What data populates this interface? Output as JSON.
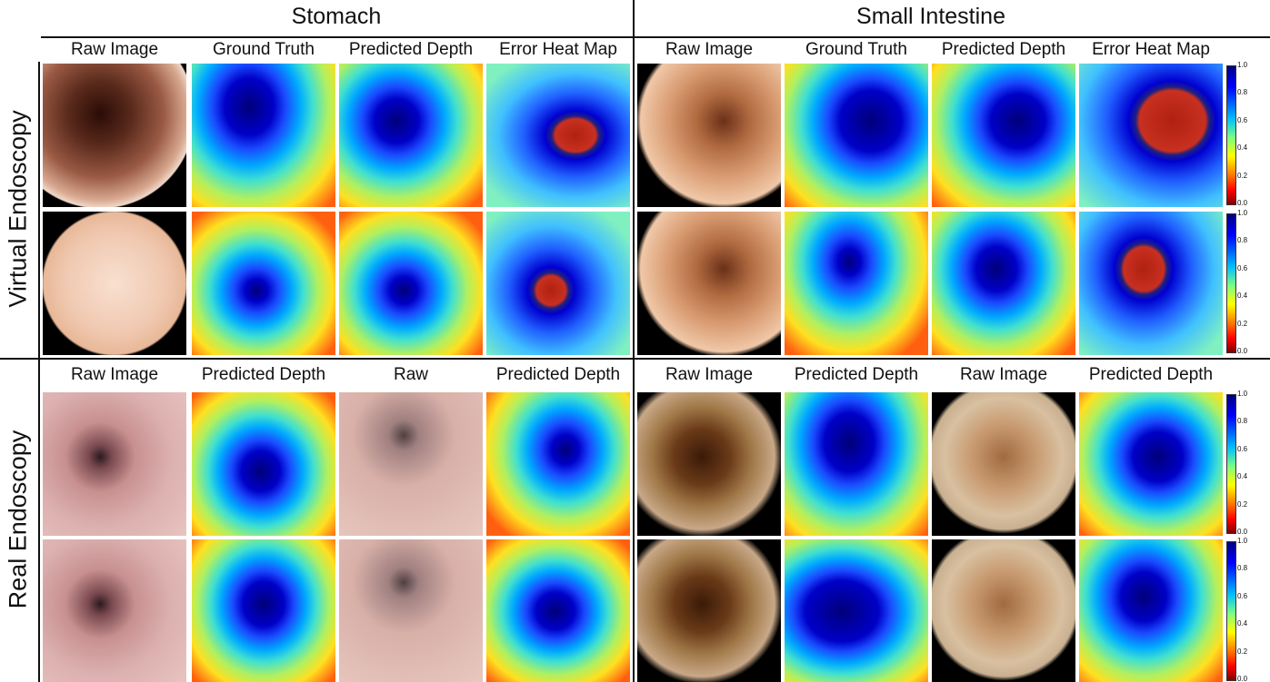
{
  "sections": [
    {
      "title": "Stomach"
    },
    {
      "title": "Small Intestine"
    }
  ],
  "groups": [
    {
      "label": "Virtual Endoscopy",
      "stomach_headers": [
        "Raw Image",
        "Ground Truth",
        "Predicted Depth",
        "Error Heat Map"
      ],
      "small_intestine_headers": [
        "Raw Image",
        "Ground Truth",
        "Predicted Depth",
        "Error Heat Map"
      ]
    },
    {
      "label": "Real Endoscopy",
      "stomach_headers": [
        "Raw Image",
        "Predicted Depth",
        "Raw",
        "Predicted Depth"
      ],
      "small_intestine_headers": [
        "Raw Image",
        "Predicted Depth",
        "Raw Image",
        "Predicted Depth"
      ]
    }
  ],
  "colorbar_ticks": [
    "1.0",
    "0.8",
    "0.6",
    "0.4",
    "0.2",
    "0.0"
  ]
}
